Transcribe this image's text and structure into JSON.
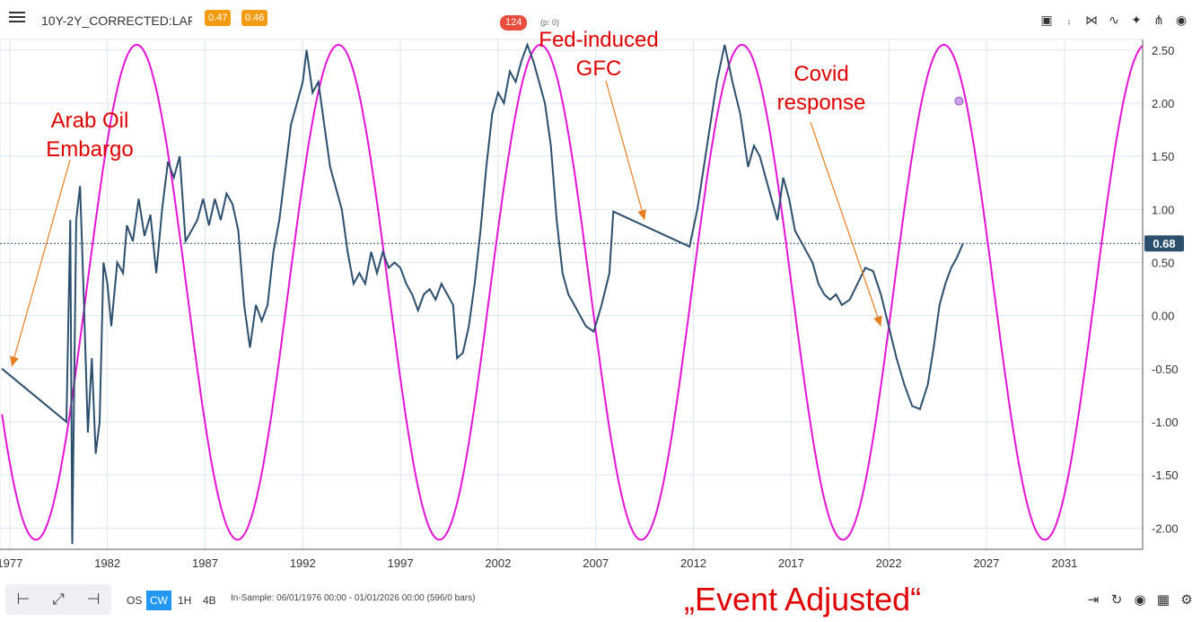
{
  "header": {
    "symbol": "10Y-2Y_CORRECTED:LAF",
    "badges": [
      "0.47",
      "0.46"
    ],
    "counter": "124",
    "counter_sub": "(p: 0)",
    "icons": [
      "save-icon",
      "pin-icon",
      "shrink-icon",
      "trend-icon",
      "magic-wand-icon",
      "branch-icon",
      "eye-icon"
    ]
  },
  "footer": {
    "timeframes": [
      "OS",
      "CW",
      "1H",
      "4B"
    ],
    "active_timeframe": "CW",
    "in_sample": "In-Sample: 06/01/1976 00:00 - 01/01/2026 00:00 (596/0 bars)",
    "event_label": "„Event Adjusted“",
    "tool_icons": [
      "align-left-icon",
      "expand-icon",
      "align-right-icon"
    ],
    "right_icons": [
      "indent-icon",
      "refresh-icon",
      "eye-icon",
      "grid-icon",
      "settings-icon"
    ]
  },
  "chart_data": {
    "type": "line",
    "x_axis_ticks": [
      1977,
      1982,
      1987,
      1992,
      1997,
      2002,
      2007,
      2012,
      2017,
      2022,
      2027,
      2031
    ],
    "y_axis_ticks": [
      "2.50",
      "2.00",
      "1.50",
      "1.00",
      "0.50",
      "0.00",
      "-0.50",
      "-1.00",
      "-1.50",
      "-2.00"
    ],
    "xlim": [
      1976.5,
      2035
    ],
    "ylim": [
      -2.2,
      2.6
    ],
    "grid": true,
    "current_value": 0.68,
    "current_value_label": "0.68",
    "series": [
      {
        "color": "#2c4f6e",
        "points": [
          [
            1976.6,
            -0.5
          ],
          [
            1979.9,
            -1.0
          ],
          [
            1980.1,
            0.9
          ],
          [
            1980.2,
            -2.15
          ],
          [
            1980.4,
            0.9
          ],
          [
            1980.6,
            1.22
          ],
          [
            1980.8,
            0.1
          ],
          [
            1981.0,
            -1.1
          ],
          [
            1981.2,
            -0.4
          ],
          [
            1981.4,
            -1.3
          ],
          [
            1981.6,
            -1.0
          ],
          [
            1981.8,
            0.5
          ],
          [
            1982.0,
            0.3
          ],
          [
            1982.2,
            -0.1
          ],
          [
            1982.5,
            0.5
          ],
          [
            1982.8,
            0.4
          ],
          [
            1983.0,
            0.85
          ],
          [
            1983.3,
            0.7
          ],
          [
            1983.6,
            1.1
          ],
          [
            1983.9,
            0.75
          ],
          [
            1984.2,
            0.95
          ],
          [
            1984.5,
            0.4
          ],
          [
            1984.8,
            1.0
          ],
          [
            1985.1,
            1.45
          ],
          [
            1985.4,
            1.3
          ],
          [
            1985.7,
            1.5
          ],
          [
            1986.0,
            0.7
          ],
          [
            1986.3,
            0.8
          ],
          [
            1986.6,
            0.9
          ],
          [
            1986.9,
            1.1
          ],
          [
            1987.2,
            0.85
          ],
          [
            1987.5,
            1.1
          ],
          [
            1987.8,
            0.9
          ],
          [
            1988.1,
            1.15
          ],
          [
            1988.4,
            1.05
          ],
          [
            1988.7,
            0.8
          ],
          [
            1989.0,
            0.1
          ],
          [
            1989.3,
            -0.3
          ],
          [
            1989.6,
            0.1
          ],
          [
            1989.9,
            -0.05
          ],
          [
            1990.2,
            0.1
          ],
          [
            1990.5,
            0.6
          ],
          [
            1990.8,
            0.9
          ],
          [
            1991.1,
            1.35
          ],
          [
            1991.4,
            1.8
          ],
          [
            1991.7,
            2.0
          ],
          [
            1992.0,
            2.2
          ],
          [
            1992.2,
            2.5
          ],
          [
            1992.5,
            2.1
          ],
          [
            1992.8,
            2.2
          ],
          [
            1993.1,
            1.8
          ],
          [
            1993.4,
            1.4
          ],
          [
            1993.7,
            1.2
          ],
          [
            1994.0,
            1.0
          ],
          [
            1994.3,
            0.6
          ],
          [
            1994.6,
            0.3
          ],
          [
            1994.9,
            0.4
          ],
          [
            1995.2,
            0.3
          ],
          [
            1995.5,
            0.6
          ],
          [
            1995.8,
            0.4
          ],
          [
            1996.1,
            0.6
          ],
          [
            1996.4,
            0.45
          ],
          [
            1996.7,
            0.5
          ],
          [
            1997.0,
            0.45
          ],
          [
            1997.3,
            0.3
          ],
          [
            1997.6,
            0.2
          ],
          [
            1997.9,
            0.05
          ],
          [
            1998.2,
            0.2
          ],
          [
            1998.5,
            0.25
          ],
          [
            1998.8,
            0.15
          ],
          [
            1999.1,
            0.3
          ],
          [
            1999.4,
            0.2
          ],
          [
            1999.7,
            0.1
          ],
          [
            1999.9,
            -0.4
          ],
          [
            2000.2,
            -0.35
          ],
          [
            2000.5,
            -0.1
          ],
          [
            2000.8,
            0.3
          ],
          [
            2001.1,
            0.8
          ],
          [
            2001.4,
            1.4
          ],
          [
            2001.7,
            1.9
          ],
          [
            2002.0,
            2.1
          ],
          [
            2002.3,
            2.0
          ],
          [
            2002.6,
            2.3
          ],
          [
            2002.9,
            2.2
          ],
          [
            2003.2,
            2.4
          ],
          [
            2003.5,
            2.55
          ],
          [
            2003.8,
            2.4
          ],
          [
            2004.1,
            2.2
          ],
          [
            2004.4,
            2.0
          ],
          [
            2004.7,
            1.6
          ],
          [
            2005.0,
            0.9
          ],
          [
            2005.3,
            0.4
          ],
          [
            2005.6,
            0.2
          ],
          [
            2005.9,
            0.1
          ],
          [
            2006.2,
            0.0
          ],
          [
            2006.5,
            -0.1
          ],
          [
            2006.9,
            -0.15
          ],
          [
            2007.3,
            0.1
          ],
          [
            2007.7,
            0.4
          ],
          [
            2007.9,
            0.98
          ],
          [
            2011.8,
            0.65
          ],
          [
            2012.2,
            1.0
          ],
          [
            2012.7,
            1.6
          ],
          [
            2013.2,
            2.2
          ],
          [
            2013.6,
            2.55
          ],
          [
            2014.0,
            2.2
          ],
          [
            2014.4,
            1.9
          ],
          [
            2014.8,
            1.4
          ],
          [
            2015.1,
            1.6
          ],
          [
            2015.4,
            1.5
          ],
          [
            2015.7,
            1.3
          ],
          [
            2016.0,
            1.1
          ],
          [
            2016.3,
            0.9
          ],
          [
            2016.6,
            1.3
          ],
          [
            2016.9,
            1.1
          ],
          [
            2017.2,
            0.8
          ],
          [
            2017.5,
            0.7
          ],
          [
            2017.8,
            0.6
          ],
          [
            2018.1,
            0.5
          ],
          [
            2018.4,
            0.3
          ],
          [
            2018.7,
            0.2
          ],
          [
            2019.0,
            0.15
          ],
          [
            2019.3,
            0.2
          ],
          [
            2019.6,
            0.1
          ],
          [
            2020.0,
            0.15
          ],
          [
            2020.4,
            0.3
          ],
          [
            2020.8,
            0.45
          ],
          [
            2021.2,
            0.42
          ],
          [
            2021.6,
            0.2
          ],
          [
            2022.0,
            -0.1
          ],
          [
            2022.4,
            -0.4
          ],
          [
            2022.8,
            -0.65
          ],
          [
            2023.2,
            -0.85
          ],
          [
            2023.6,
            -0.88
          ],
          [
            2024.0,
            -0.65
          ],
          [
            2024.3,
            -0.3
          ],
          [
            2024.6,
            0.1
          ],
          [
            2024.9,
            0.3
          ],
          [
            2025.2,
            0.45
          ],
          [
            2025.5,
            0.55
          ],
          [
            2025.8,
            0.68
          ]
        ]
      },
      {
        "color": "#e413d6",
        "amplitude": 2.33,
        "offset": 0.22,
        "period": 10.33,
        "peak_year": 1983.5,
        "x_range": [
          1976.6,
          2035
        ],
        "marker": [
          2025.6,
          2.02
        ]
      }
    ],
    "annotations": [
      {
        "lines": [
          "Arab Oil",
          "Embargo"
        ],
        "arrow_target": [
          1977.1,
          -0.48
        ]
      },
      {
        "lines": [
          "Fed-induced",
          "GFC"
        ],
        "arrow_target": [
          2009.5,
          0.9
        ]
      },
      {
        "lines": [
          "Covid",
          "response"
        ],
        "arrow_target": [
          2021.6,
          -0.1
        ]
      }
    ]
  }
}
